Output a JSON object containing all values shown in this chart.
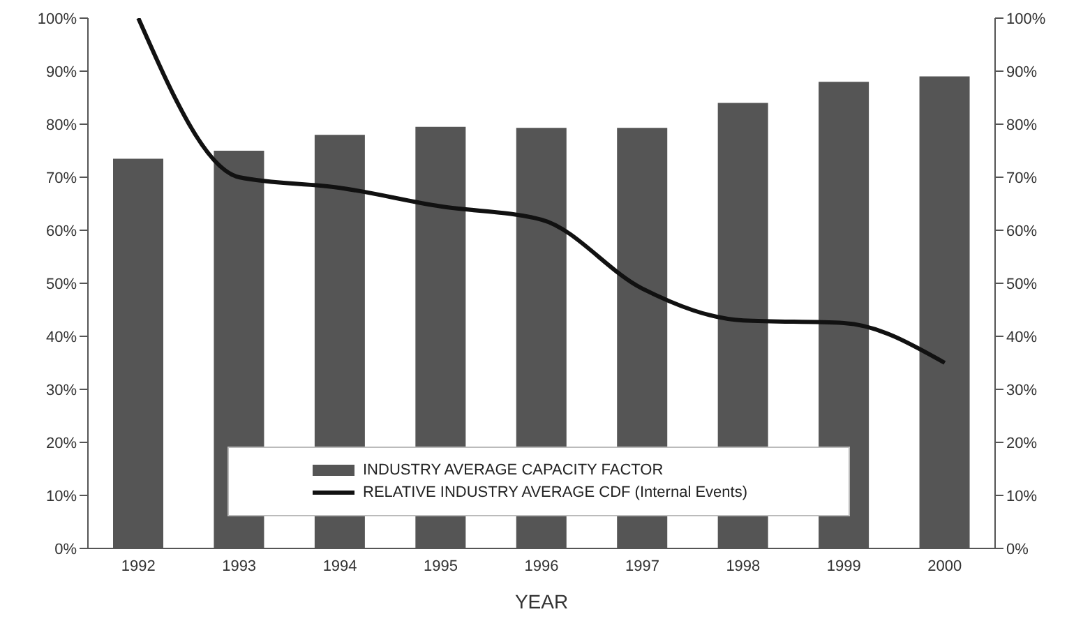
{
  "chart_data": {
    "type": "bar",
    "xlabel": "YEAR",
    "categories": [
      "1992",
      "1993",
      "1994",
      "1995",
      "1996",
      "1997",
      "1998",
      "1999",
      "2000"
    ],
    "series": [
      {
        "name": "INDUSTRY AVERAGE CAPACITY FACTOR",
        "color": "#555555",
        "values": [
          73.5,
          75,
          78,
          79.5,
          79.3,
          79.3,
          84,
          88,
          89
        ]
      },
      {
        "name": "RELATIVE INDUSTRY AVERAGE CDF (Internal Events)",
        "type": "line",
        "color": "#111111",
        "values": [
          100,
          70,
          68,
          64.5,
          62,
          49,
          43,
          42.5,
          35
        ]
      }
    ],
    "ylim": [
      0,
      100
    ],
    "yticks": [
      {
        "value": 0,
        "label": "0%"
      },
      {
        "value": 10,
        "label": "10%"
      },
      {
        "value": 20,
        "label": "20%"
      },
      {
        "value": 30,
        "label": "30%"
      },
      {
        "value": 40,
        "label": "40%"
      },
      {
        "value": 50,
        "label": "50%"
      },
      {
        "value": 60,
        "label": "60%"
      },
      {
        "value": 70,
        "label": "70%"
      },
      {
        "value": 80,
        "label": "80%"
      },
      {
        "value": 90,
        "label": "90%"
      },
      {
        "value": 100,
        "label": "100%"
      }
    ],
    "y2lim": [
      0,
      100
    ],
    "y2ticks": [
      {
        "value": 0,
        "label": "0%"
      },
      {
        "value": 10,
        "label": "10%"
      },
      {
        "value": 20,
        "label": "20%"
      },
      {
        "value": 30,
        "label": "30%"
      },
      {
        "value": 40,
        "label": "40%"
      },
      {
        "value": 50,
        "label": "50%"
      },
      {
        "value": 60,
        "label": "60%"
      },
      {
        "value": 70,
        "label": "70%"
      },
      {
        "value": 80,
        "label": "80%"
      },
      {
        "value": 90,
        "label": "90%"
      },
      {
        "value": 100,
        "label": "100%"
      }
    ],
    "grid": false,
    "legend": "bottom",
    "marker": "none",
    "line_style": "solid"
  }
}
